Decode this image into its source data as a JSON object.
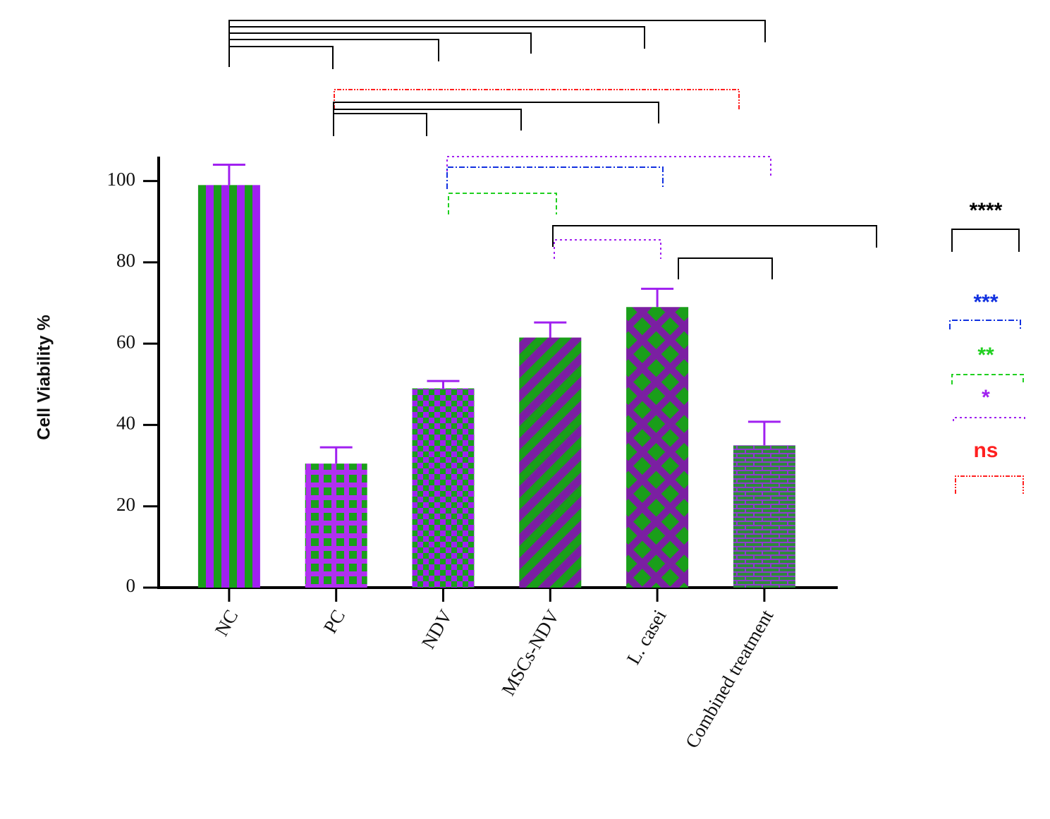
{
  "chart_data": {
    "type": "bar",
    "y_label": "Cell Viability %",
    "categories": [
      "NC",
      "PC",
      "NDV",
      "MSCs-NDV",
      "L. casei",
      "Combined treatment"
    ],
    "values": [
      99,
      30.5,
      49,
      61.5,
      69,
      35
    ],
    "errors": [
      5,
      4,
      1.8,
      3.7,
      4.5,
      5.8
    ],
    "ylim": [
      0,
      106
    ],
    "yticks": [
      0,
      20,
      40,
      60,
      80,
      100
    ],
    "significance_legend": [
      "****",
      "***",
      "**",
      "*",
      "ns"
    ]
  }
}
